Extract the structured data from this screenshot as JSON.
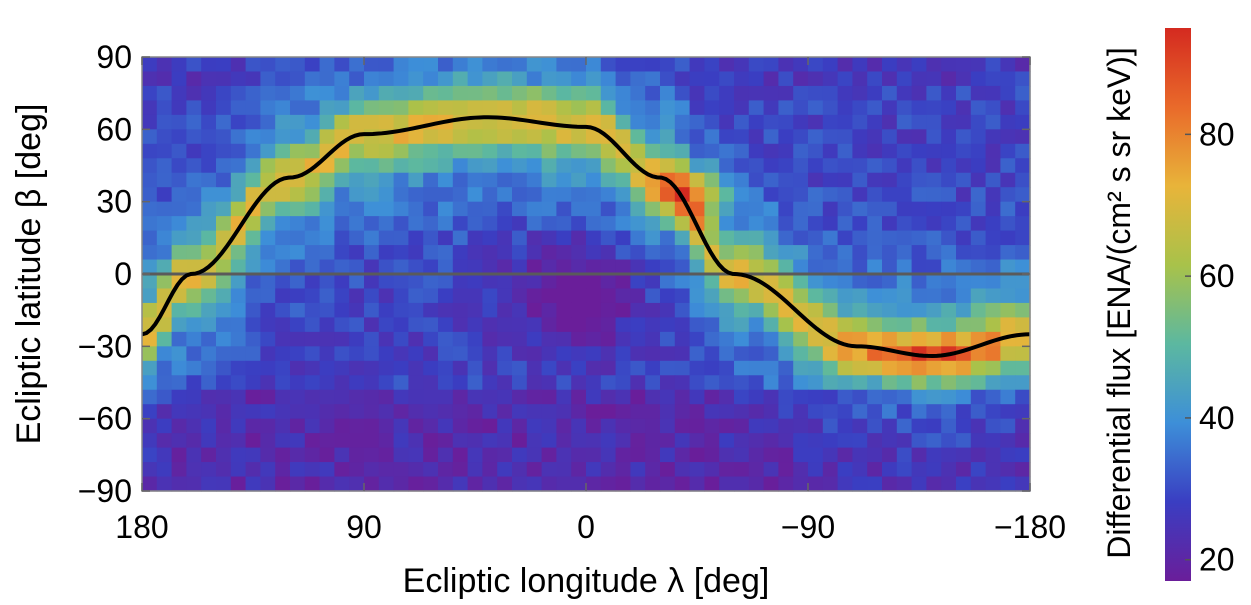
{
  "chart_data": {
    "type": "heatmap",
    "xlabel": "Ecliptic longitude λ [deg]",
    "ylabel": "Ecliptic latitude β [deg]",
    "xlim": [
      180,
      -180
    ],
    "ylim": [
      -90,
      90
    ],
    "x_ticks": [
      "180",
      "90",
      "0",
      "−90",
      "−180"
    ],
    "y_ticks": [
      "90",
      "60",
      "30",
      "0",
      "−30",
      "−60",
      "−90"
    ],
    "x_tick_values": [
      180,
      90,
      0,
      -90,
      -180
    ],
    "y_tick_values": [
      90,
      60,
      30,
      0,
      -30,
      -60,
      -90
    ],
    "colorbar": {
      "label": "Differential  flux [ENA/(cm² s sr keV)]",
      "range": [
        17,
        95
      ],
      "ticks": [
        "20",
        "40",
        "60",
        "80"
      ],
      "tick_values": [
        20,
        40,
        60,
        80
      ],
      "colormap": [
        "#6a1e9a",
        "#3a3ec2",
        "#3d8fd8",
        "#5cb8a0",
        "#a8c24a",
        "#e8b43a",
        "#e96a2a",
        "#d42a20"
      ]
    },
    "grid": {
      "lon_bins": 60,
      "lat_bins": 30,
      "lon_range": [
        180,
        -180
      ],
      "lat_range": [
        90,
        -90
      ]
    },
    "ribbon": {
      "description_values": "peak-flux centerline",
      "curve": [
        {
          "lon": 180,
          "lat": -25
        },
        {
          "lon": 160,
          "lat": 0
        },
        {
          "lon": 120,
          "lat": 40
        },
        {
          "lon": 90,
          "lat": 58
        },
        {
          "lon": 40,
          "lat": 65
        },
        {
          "lon": 0,
          "lat": 61
        },
        {
          "lon": -30,
          "lat": 40
        },
        {
          "lon": -60,
          "lat": 0
        },
        {
          "lon": -110,
          "lat": -30
        },
        {
          "lon": -140,
          "lat": -34
        },
        {
          "lon": -180,
          "lat": -25
        }
      ],
      "peak_flux": 95,
      "hotspot": {
        "lon": -43,
        "lat": 33,
        "flux": 95
      }
    },
    "background_flux": 28,
    "low_region": {
      "lon": 5,
      "lat": -8,
      "flux": 19
    },
    "equator_line": {
      "lat": 0,
      "color": "#5a5a5a"
    }
  }
}
